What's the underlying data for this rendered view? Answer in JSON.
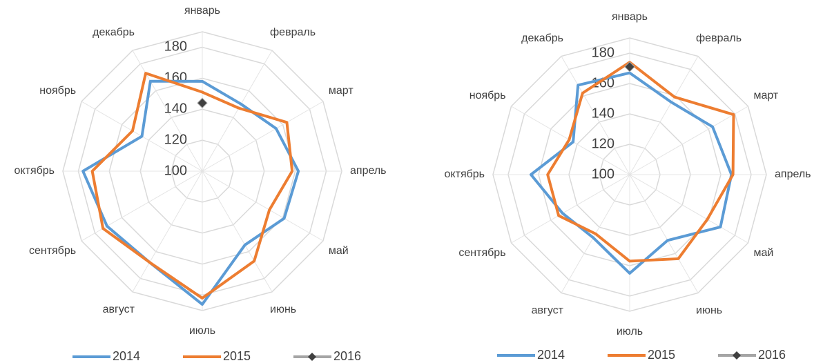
{
  "chart_data": [
    {
      "type": "radar",
      "categories": [
        "январь",
        "февраль",
        "март",
        "апрель",
        "май",
        "июнь",
        "июль",
        "август",
        "сентябрь",
        "октябрь",
        "ноябрь",
        "декабрь"
      ],
      "series": [
        {
          "name": "2014",
          "color": "#5b9bd5",
          "values": [
            158,
            150,
            155,
            162,
            161,
            155,
            186,
            168,
            171,
            177,
            145,
            167
          ]
        },
        {
          "name": "2015",
          "color": "#ed7d31",
          "values": [
            151,
            147,
            163,
            158,
            150,
            167,
            182,
            168,
            174,
            171,
            152,
            173
          ]
        },
        {
          "name": "2016",
          "color": "#a5a5a5",
          "marker": "diamond",
          "marker_color": "#404040",
          "values": [
            144,
            null,
            null,
            null,
            null,
            null,
            null,
            null,
            null,
            null,
            null,
            null
          ]
        }
      ],
      "ylim": [
        100,
        190
      ],
      "yticks": [
        100,
        120,
        140,
        160,
        180
      ],
      "grid": true,
      "legend": "bottom"
    },
    {
      "type": "radar",
      "categories": [
        "январь",
        "февраль",
        "март",
        "апрель",
        "май",
        "июнь",
        "июль",
        "август",
        "сентябрь",
        "октябрь",
        "ноябрь",
        "декабрь"
      ],
      "series": [
        {
          "name": "2014",
          "color": "#5b9bd5",
          "values": [
            167,
            155,
            163,
            167,
            169,
            150,
            165,
            148,
            151,
            165,
            143,
            168
          ]
        },
        {
          "name": "2015",
          "color": "#ed7d31",
          "values": [
            174,
            159,
            179,
            168,
            159,
            164,
            157,
            145,
            154,
            154,
            146,
            162
          ]
        },
        {
          "name": "2016",
          "color": "#a5a5a5",
          "marker": "diamond",
          "marker_color": "#404040",
          "values": [
            171,
            null,
            null,
            null,
            null,
            null,
            null,
            null,
            null,
            null,
            null,
            null
          ]
        }
      ],
      "ylim": [
        100,
        190
      ],
      "yticks": [
        100,
        120,
        140,
        160,
        180
      ],
      "grid": true,
      "legend": "bottom"
    }
  ]
}
